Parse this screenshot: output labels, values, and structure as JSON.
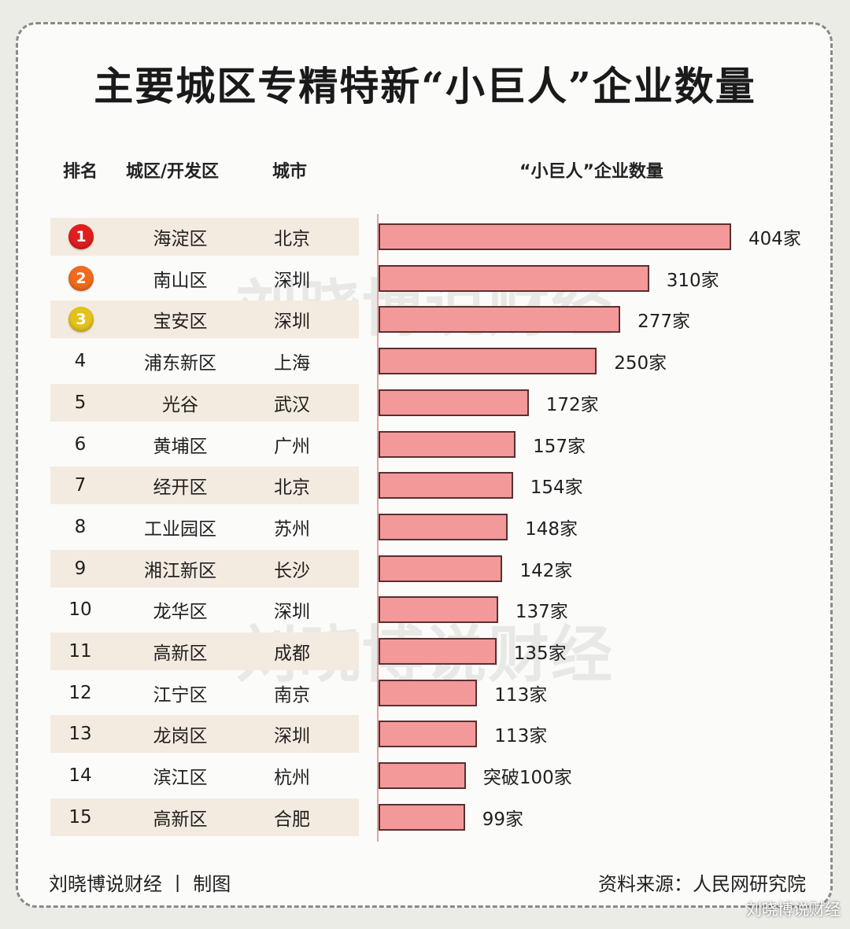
{
  "title": "主要城区专精特新“小巨人”企业数量",
  "headers": {
    "rank": "排名",
    "district": "城区/开发区",
    "city": "城市",
    "count": "“小巨人”企业数量"
  },
  "watermark": "刘晓博说财经",
  "footer_left": "刘晓博说财经 丨 制图",
  "footer_right": "资料来源：人民网研究院",
  "corner_watermark": "刘晓博说财经",
  "medal_colors": [
    "#e01e1e",
    "#f26b1d",
    "#e3c21b"
  ],
  "row_stripe_color": "#f4ebe0",
  "bar_color": "#f3999a",
  "chart_data": {
    "type": "bar",
    "orientation": "horizontal",
    "categories": [
      "海淀区",
      "南山区",
      "宝安区",
      "浦东新区",
      "光谷",
      "黄埔区",
      "经开区",
      "工业园区",
      "湘江新区",
      "龙华区",
      "高新区",
      "江宁区",
      "龙岗区",
      "滨江区",
      "高新区"
    ],
    "values": [
      404,
      310,
      277,
      250,
      172,
      157,
      154,
      148,
      142,
      137,
      135,
      113,
      113,
      100,
      99
    ],
    "xlim": [
      0,
      404
    ]
  },
  "rows": [
    {
      "rank": "1",
      "district": "海淀区",
      "city": "北京",
      "label": "404家"
    },
    {
      "rank": "2",
      "district": "南山区",
      "city": "深圳",
      "label": "310家"
    },
    {
      "rank": "3",
      "district": "宝安区",
      "city": "深圳",
      "label": "277家"
    },
    {
      "rank": "4",
      "district": "浦东新区",
      "city": "上海",
      "label": "250家"
    },
    {
      "rank": "5",
      "district": "光谷",
      "city": "武汉",
      "label": "172家"
    },
    {
      "rank": "6",
      "district": "黄埔区",
      "city": "广州",
      "label": "157家"
    },
    {
      "rank": "7",
      "district": "经开区",
      "city": "北京",
      "label": "154家"
    },
    {
      "rank": "8",
      "district": "工业园区",
      "city": "苏州",
      "label": "148家"
    },
    {
      "rank": "9",
      "district": "湘江新区",
      "city": "长沙",
      "label": "142家"
    },
    {
      "rank": "10",
      "district": "龙华区",
      "city": "深圳",
      "label": "137家"
    },
    {
      "rank": "11",
      "district": "高新区",
      "city": "成都",
      "label": "135家"
    },
    {
      "rank": "12",
      "district": "江宁区",
      "city": "南京",
      "label": "113家"
    },
    {
      "rank": "13",
      "district": "龙岗区",
      "city": "深圳",
      "label": "113家"
    },
    {
      "rank": "14",
      "district": "滨江区",
      "city": "杭州",
      "label": "突破100家"
    },
    {
      "rank": "15",
      "district": "高新区",
      "city": "合肥",
      "label": "99家"
    }
  ]
}
